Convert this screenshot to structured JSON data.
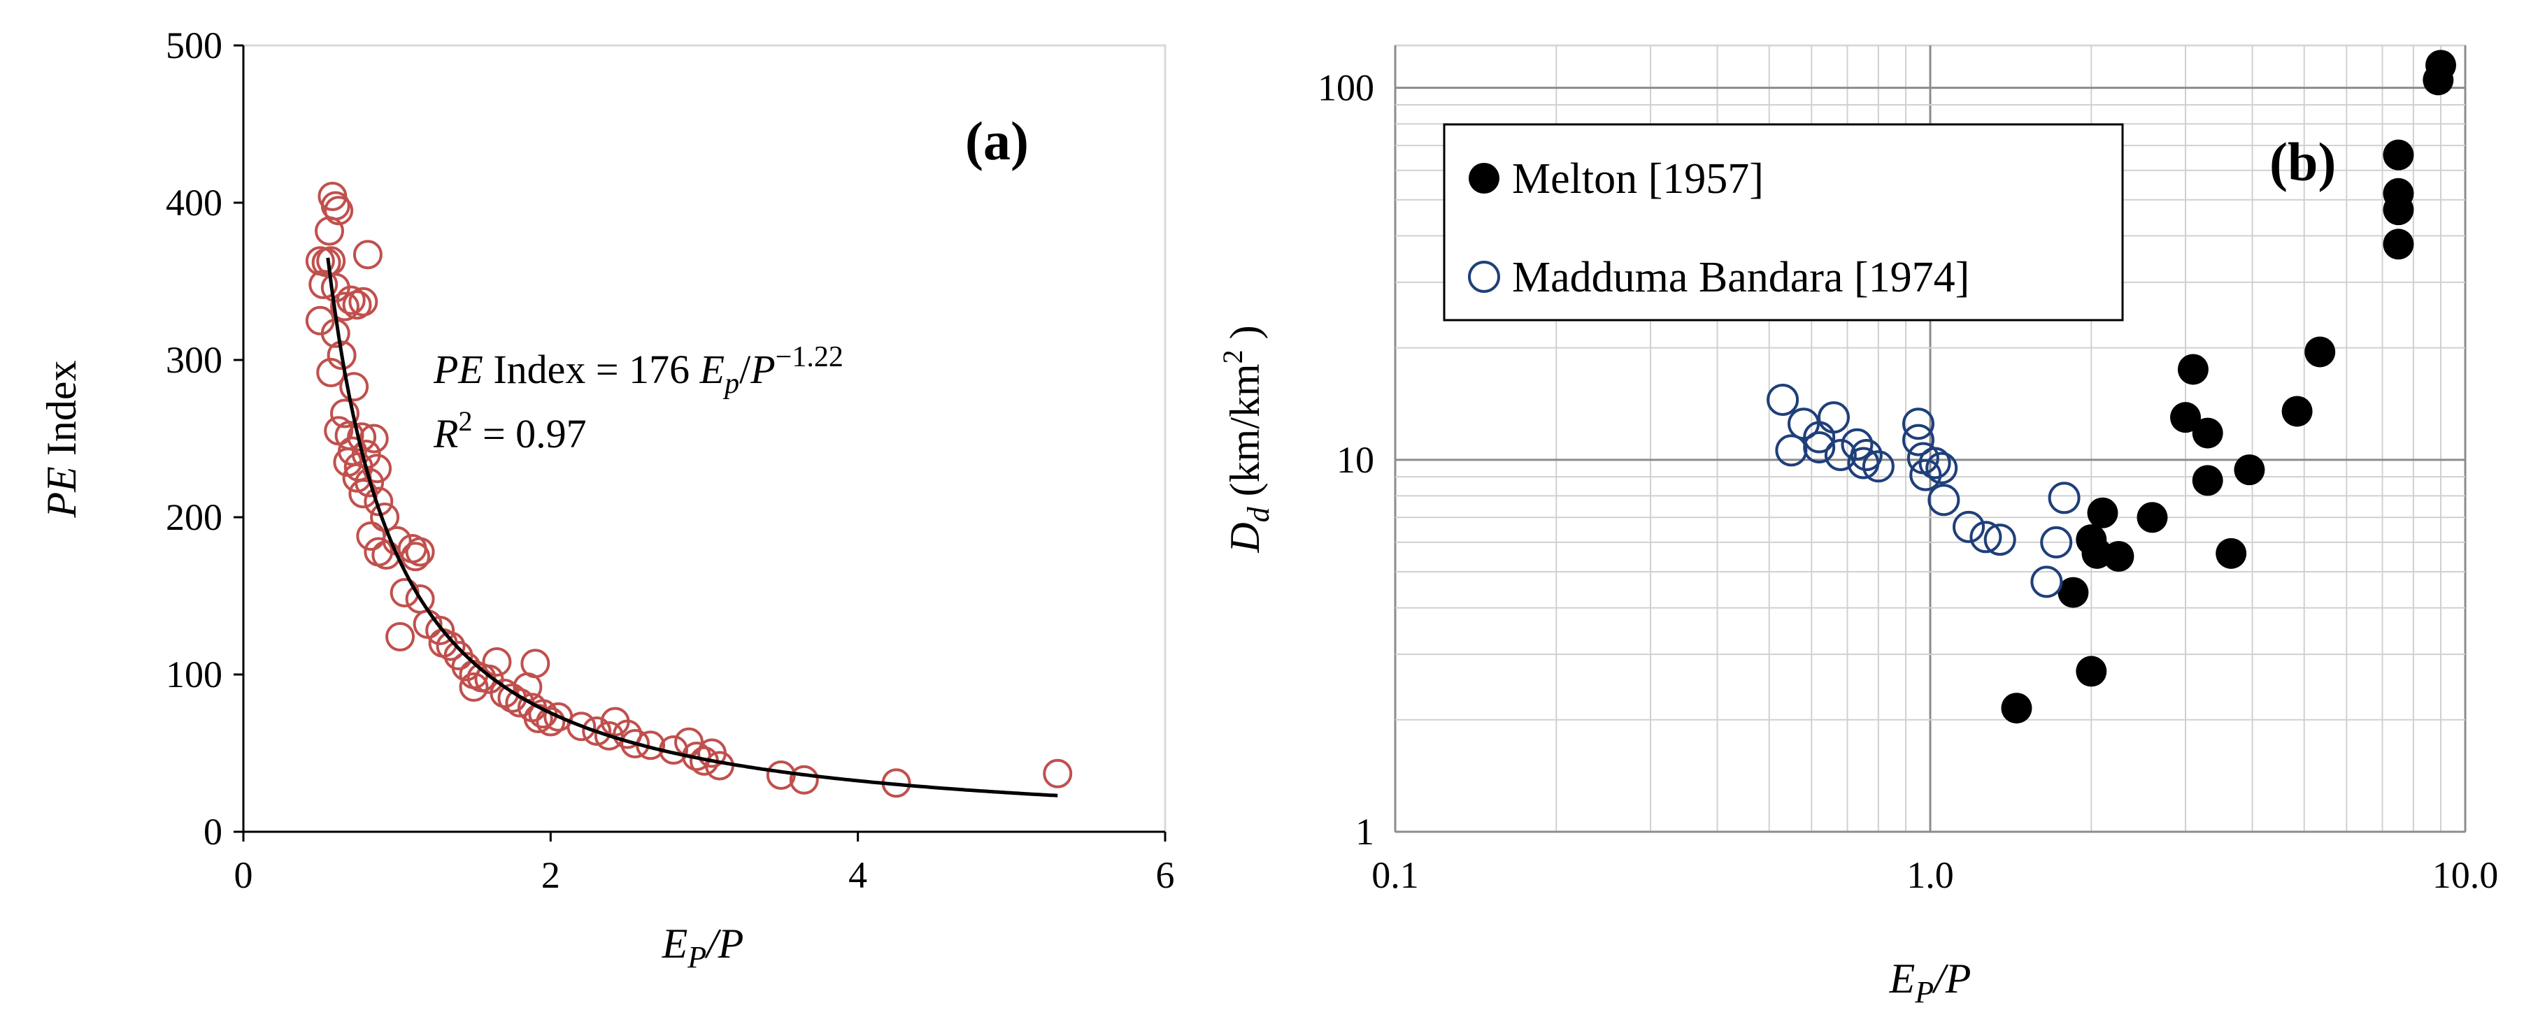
{
  "chart_data": [
    {
      "panel_label": "(a)",
      "type": "scatter",
      "xlabel_main": "E",
      "xlabel_sub": "P",
      "xlabel_tail": "/P",
      "ylabel_italic": "PE",
      "ylabel_tail": " Index",
      "xlim": [
        0,
        6
      ],
      "ylim": [
        0,
        500
      ],
      "x_ticks": [
        0,
        2,
        4,
        6
      ],
      "y_ticks": [
        0,
        100,
        200,
        300,
        400,
        500
      ],
      "marker_color": "#c0504d",
      "fit_color": "#000000",
      "fit": {
        "a": 176,
        "b": -1.22,
        "x_range": [
          0.55,
          5.3
        ]
      },
      "equation": {
        "lhs_italic": "PE",
        "lhs_text": " Index = 176 ",
        "var1": "E",
        "var1_sub": "p",
        "slash": "/",
        "var2": "P",
        "exponent": "−1.22",
        "r2_var": "R",
        "r2_sup": "2",
        "r2_text": " = 0.97"
      },
      "points": [
        [
          0.58,
          404
        ],
        [
          0.6,
          398
        ],
        [
          0.62,
          395
        ],
        [
          0.56,
          382
        ],
        [
          0.5,
          363
        ],
        [
          0.54,
          362
        ],
        [
          0.57,
          363
        ],
        [
          0.52,
          348
        ],
        [
          0.6,
          346
        ],
        [
          0.66,
          334
        ],
        [
          0.7,
          338
        ],
        [
          0.74,
          335
        ],
        [
          0.78,
          337
        ],
        [
          0.81,
          367
        ],
        [
          0.5,
          325
        ],
        [
          0.6,
          317
        ],
        [
          0.64,
          303
        ],
        [
          0.57,
          292
        ],
        [
          0.72,
          283
        ],
        [
          0.66,
          266
        ],
        [
          0.62,
          255
        ],
        [
          0.69,
          252
        ],
        [
          0.77,
          251
        ],
        [
          0.85,
          250
        ],
        [
          0.71,
          242
        ],
        [
          0.8,
          240
        ],
        [
          0.68,
          235
        ],
        [
          0.75,
          232
        ],
        [
          0.87,
          231
        ],
        [
          0.74,
          225
        ],
        [
          0.82,
          222
        ],
        [
          0.78,
          215
        ],
        [
          0.88,
          210
        ],
        [
          0.92,
          200
        ],
        [
          0.83,
          188
        ],
        [
          0.88,
          178
        ],
        [
          0.93,
          176
        ],
        [
          1.0,
          185
        ],
        [
          1.1,
          180
        ],
        [
          1.12,
          175
        ],
        [
          1.15,
          178
        ],
        [
          1.05,
          152
        ],
        [
          1.15,
          148
        ],
        [
          1.2,
          132
        ],
        [
          1.28,
          128
        ],
        [
          1.02,
          124
        ],
        [
          1.3,
          120
        ],
        [
          1.35,
          118
        ],
        [
          1.4,
          112
        ],
        [
          1.45,
          105
        ],
        [
          1.5,
          100
        ],
        [
          1.55,
          98
        ],
        [
          1.6,
          97
        ],
        [
          1.5,
          92
        ],
        [
          1.65,
          108
        ],
        [
          1.7,
          88
        ],
        [
          1.75,
          85
        ],
        [
          1.8,
          82
        ],
        [
          1.9,
          107
        ],
        [
          1.85,
          92
        ],
        [
          1.88,
          79
        ],
        [
          1.95,
          75
        ],
        [
          2.0,
          70
        ],
        [
          2.05,
          73
        ],
        [
          1.92,
          72
        ],
        [
          2.2,
          67
        ],
        [
          2.3,
          64
        ],
        [
          2.38,
          61
        ],
        [
          2.42,
          70
        ],
        [
          2.5,
          62
        ],
        [
          2.55,
          56
        ],
        [
          2.65,
          55
        ],
        [
          2.8,
          52
        ],
        [
          2.9,
          57
        ],
        [
          2.95,
          48
        ],
        [
          3.0,
          45
        ],
        [
          3.05,
          50
        ],
        [
          3.1,
          42
        ],
        [
          3.5,
          36
        ],
        [
          3.65,
          33
        ],
        [
          4.25,
          31
        ],
        [
          5.3,
          37
        ]
      ]
    },
    {
      "panel_label": "(b)",
      "type": "scatter",
      "x_scale": "log",
      "y_scale": "log",
      "xlabel_main": "E",
      "xlabel_sub": "P",
      "xlabel_tail": "/P",
      "ylabel_main": "D",
      "ylabel_sub": "d",
      "ylabel_tail": " (km/km",
      "ylabel_sup": "2",
      "ylabel_close": " )",
      "xlim": [
        0.1,
        10
      ],
      "ylim": [
        1,
        130
      ],
      "x_ticks": [
        "0.1",
        "1.0",
        "10.0"
      ],
      "y_ticks": [
        "1",
        "10",
        "100"
      ],
      "legend_position": "top-left",
      "series": [
        {
          "name": "Melton [1957]",
          "marker": "filled-circle",
          "color": "#000000",
          "points": [
            [
              9.0,
              115
            ],
            [
              8.9,
              105
            ],
            [
              7.5,
              66
            ],
            [
              7.5,
              52
            ],
            [
              7.5,
              47
            ],
            [
              7.5,
              38
            ],
            [
              5.35,
              19.5
            ],
            [
              4.85,
              13.5
            ],
            [
              3.1,
              17.5
            ],
            [
              3.0,
              13
            ],
            [
              3.3,
              11.8
            ],
            [
              3.3,
              8.8
            ],
            [
              3.95,
              9.4
            ],
            [
              3.65,
              5.6
            ],
            [
              2.6,
              7
            ],
            [
              2.1,
              7.2
            ],
            [
              2.0,
              6.1
            ],
            [
              2.05,
              5.6
            ],
            [
              2.25,
              5.5
            ],
            [
              1.85,
              4.4
            ],
            [
              2.0,
              2.7
            ],
            [
              1.45,
              2.15
            ]
          ]
        },
        {
          "name": "Madduma Bandara [1974]",
          "marker": "open-circle",
          "color": "#1f3f7a",
          "points": [
            [
              0.53,
              14.5
            ],
            [
              0.58,
              12.5
            ],
            [
              0.55,
              10.6
            ],
            [
              0.62,
              11.5
            ],
            [
              0.62,
              10.8
            ],
            [
              0.66,
              13
            ],
            [
              0.68,
              10.3
            ],
            [
              0.73,
              11
            ],
            [
              0.76,
              10.3
            ],
            [
              0.75,
              9.8
            ],
            [
              0.8,
              9.6
            ],
            [
              0.95,
              12.5
            ],
            [
              0.95,
              11.3
            ],
            [
              0.97,
              10.1
            ],
            [
              0.98,
              9.1
            ],
            [
              1.02,
              9.8
            ],
            [
              1.05,
              9.5
            ],
            [
              1.06,
              7.8
            ],
            [
              1.18,
              6.6
            ],
            [
              1.27,
              6.2
            ],
            [
              1.35,
              6.1
            ],
            [
              1.65,
              4.7
            ],
            [
              1.72,
              6
            ],
            [
              1.78,
              7.9
            ]
          ]
        }
      ]
    }
  ]
}
